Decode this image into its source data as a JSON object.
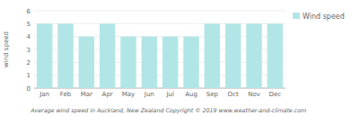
{
  "chart_data": {
    "type": "bar",
    "categories": [
      "Jan",
      "Feb",
      "Mar",
      "Apr",
      "May",
      "Jun",
      "Jul",
      "Aug",
      "Sep",
      "Oct",
      "Nov",
      "Dec"
    ],
    "series": [
      {
        "name": "Wind speed",
        "color": "#b2e6e6",
        "values": [
          5,
          5,
          4,
          5,
          4,
          4,
          4,
          4,
          5,
          5,
          5,
          5
        ]
      }
    ],
    "ylabel": "wind speed",
    "caption": "Average wind speed in Auckland, New Zealand   Copyright © 2019 www.weather-and-climate.com",
    "ylim": [
      0,
      6
    ],
    "yticks": [
      0,
      1,
      2,
      3,
      4,
      5,
      6
    ],
    "grid": true,
    "legend": "upper right"
  }
}
